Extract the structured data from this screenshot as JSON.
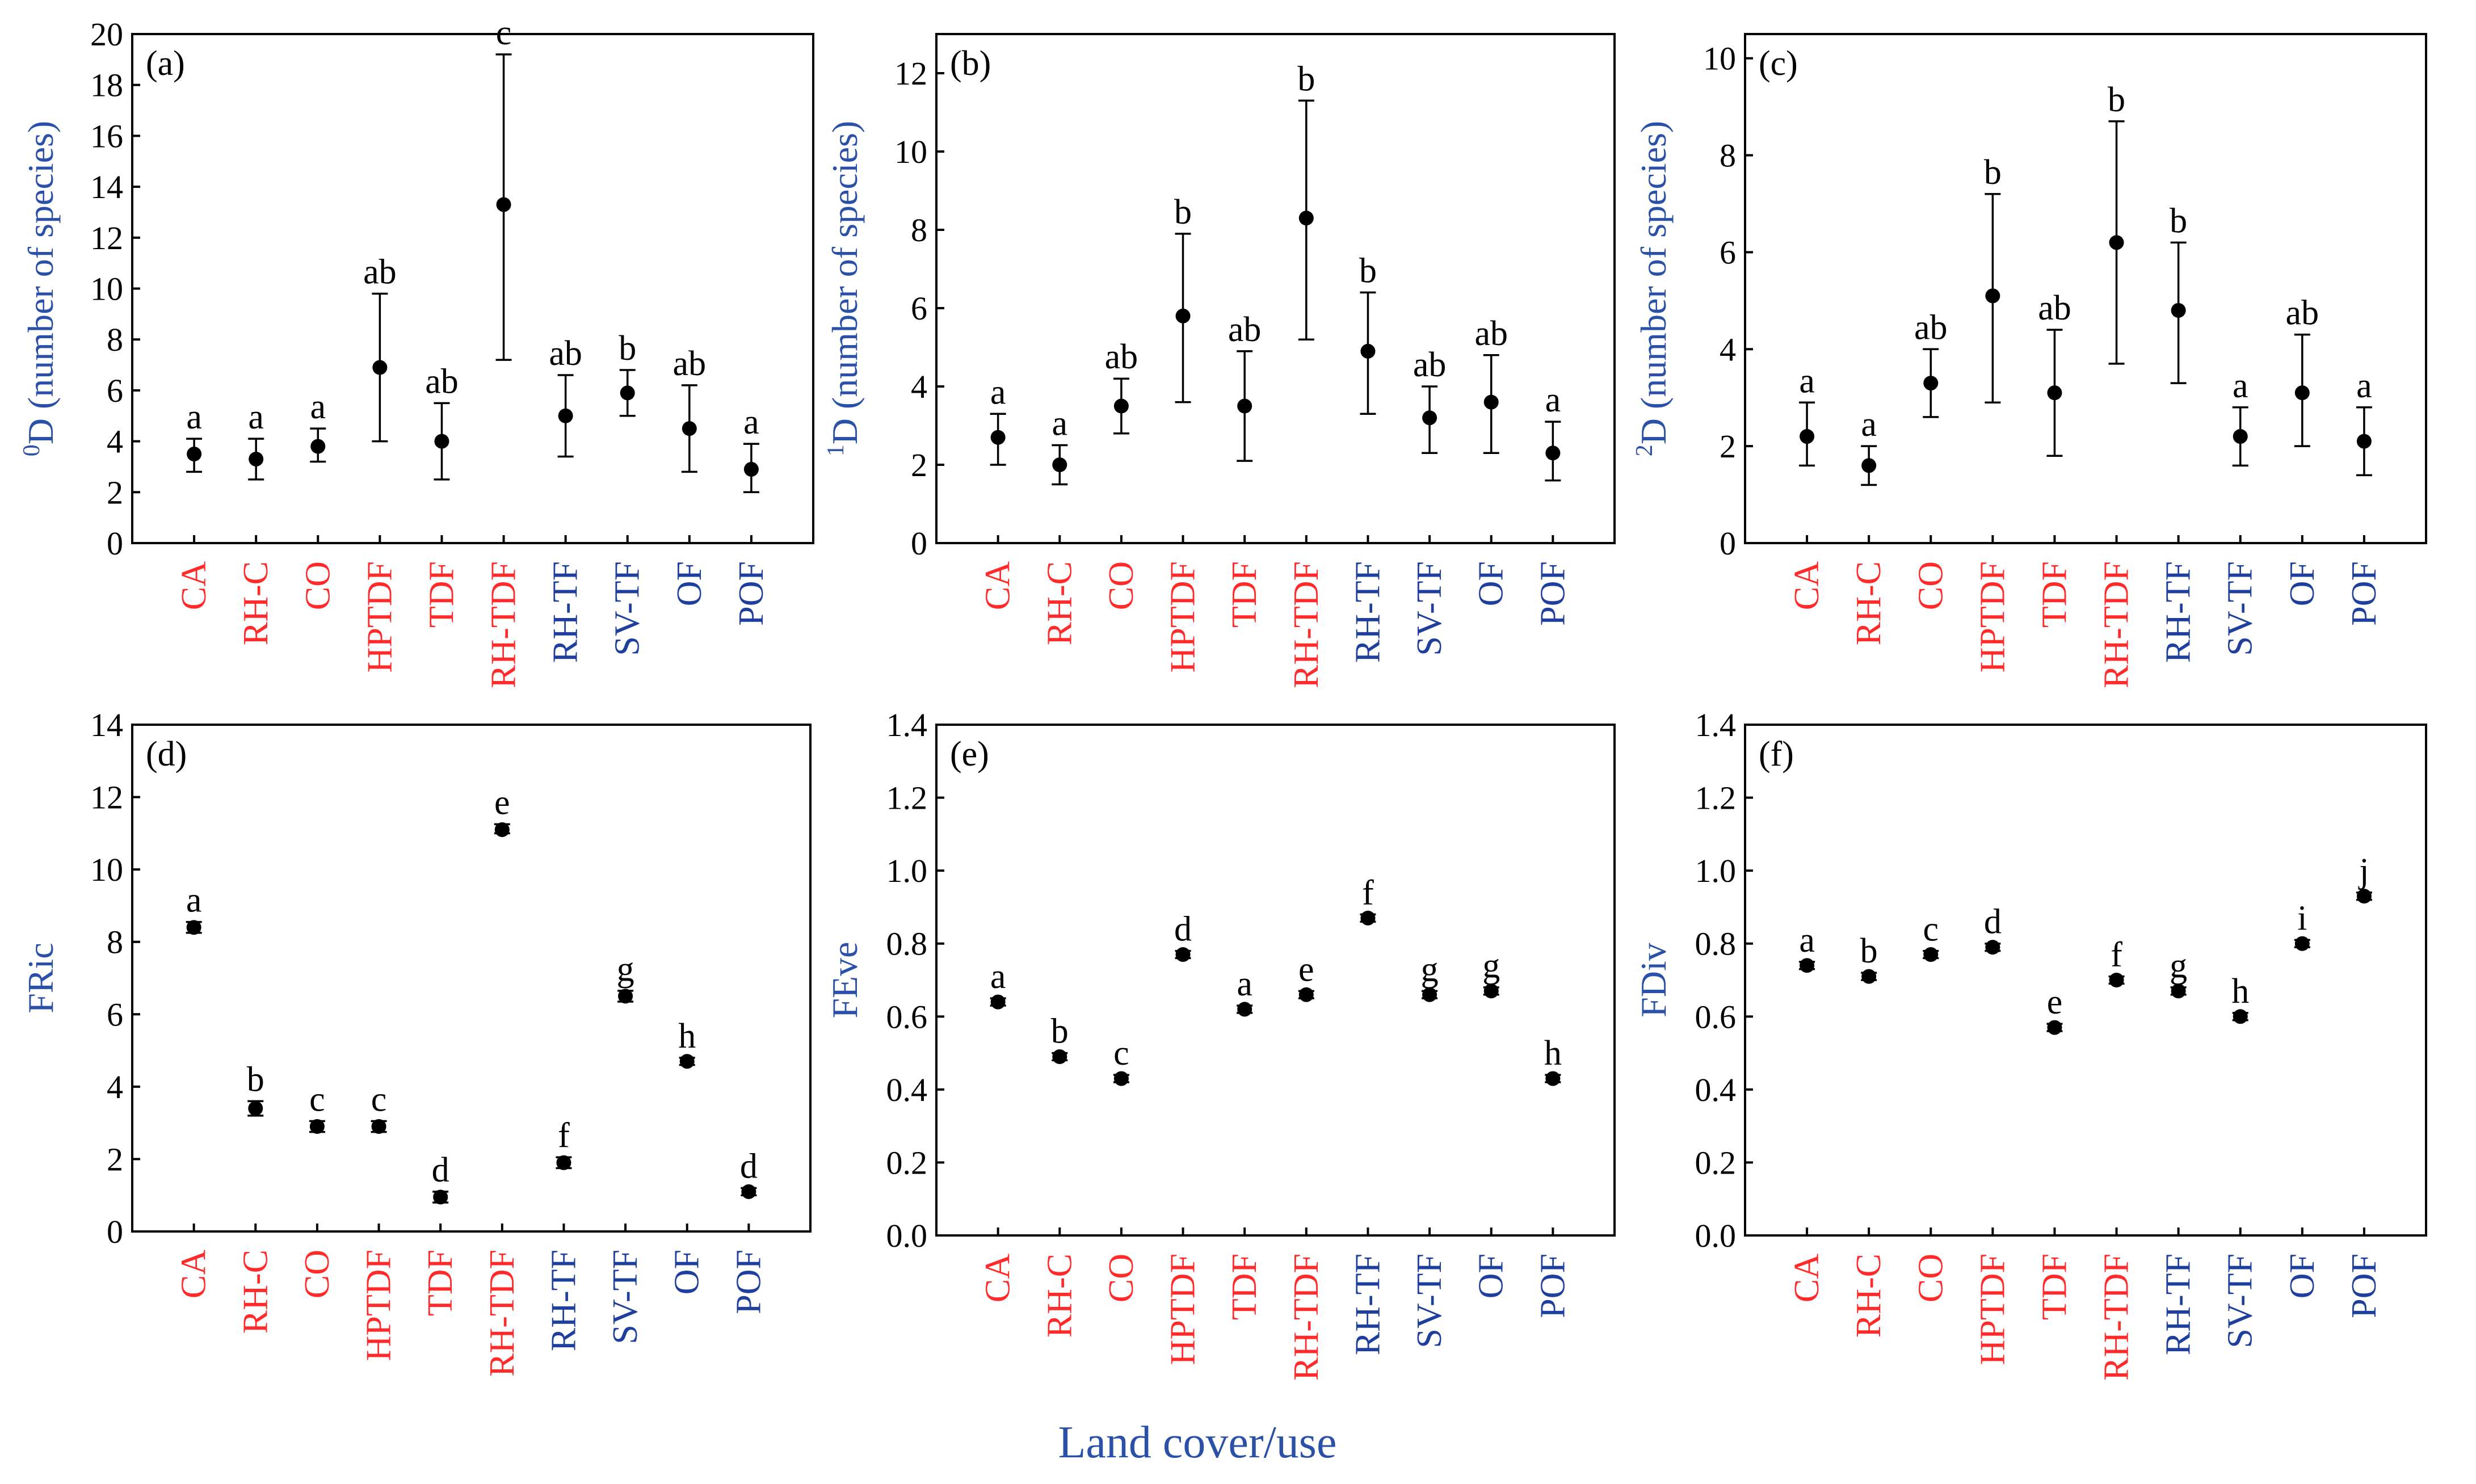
{
  "colors": {
    "original": "#ff2a2a",
    "alternative": "#1f3f9e",
    "axis_title": "#2b50a8"
  },
  "categories": [
    {
      "label": "CA",
      "group": "original"
    },
    {
      "label": "RH-C",
      "group": "original"
    },
    {
      "label": "CO",
      "group": "original"
    },
    {
      "label": "HPTDF",
      "group": "original"
    },
    {
      "label": "TDF",
      "group": "original"
    },
    {
      "label": "RH-TDF",
      "group": "original"
    },
    {
      "label": "RH-TF",
      "group": "alternative"
    },
    {
      "label": "SV-TF",
      "group": "alternative"
    },
    {
      "label": "OF",
      "group": "alternative"
    },
    {
      "label": "POF",
      "group": "alternative"
    }
  ],
  "x_title": "Land cover/use",
  "chart_data": [
    {
      "panel": "(a)",
      "type": "scatter",
      "ylabel_sup": "0",
      "ylabel_main": "D",
      "ylabel_rest": " (number of species)",
      "ylim": [
        0,
        20
      ],
      "yticks": [
        0,
        2,
        4,
        6,
        8,
        10,
        12,
        14,
        16,
        18,
        20
      ],
      "decimals": 0,
      "values": [
        3.5,
        3.3,
        3.8,
        6.9,
        4.0,
        13.3,
        5.0,
        5.9,
        4.5,
        2.9
      ],
      "lower": [
        2.8,
        2.5,
        3.2,
        4.0,
        2.5,
        7.2,
        3.4,
        5.0,
        2.8,
        2.0
      ],
      "upper": [
        4.1,
        4.1,
        4.5,
        9.8,
        5.5,
        19.2,
        6.6,
        6.8,
        6.2,
        3.9
      ],
      "letters": [
        "a",
        "a",
        "a",
        "ab",
        "ab",
        "c",
        "ab",
        "b",
        "ab",
        "a"
      ]
    },
    {
      "panel": "(b)",
      "type": "scatter",
      "ylabel_sup": "1",
      "ylabel_main": "D",
      "ylabel_rest": " (number of species)",
      "ylim": [
        0,
        13
      ],
      "yticks": [
        0,
        2,
        4,
        6,
        8,
        10,
        12
      ],
      "decimals": 0,
      "values": [
        2.7,
        2.0,
        3.5,
        5.8,
        3.5,
        8.3,
        4.9,
        3.2,
        3.6,
        2.3
      ],
      "lower": [
        2.0,
        1.5,
        2.8,
        3.6,
        2.1,
        5.2,
        3.3,
        2.3,
        2.3,
        1.6
      ],
      "upper": [
        3.3,
        2.5,
        4.2,
        7.9,
        4.9,
        11.3,
        6.4,
        4.0,
        4.8,
        3.1
      ],
      "letters": [
        "a",
        "a",
        "ab",
        "b",
        "ab",
        "b",
        "b",
        "ab",
        "ab",
        "a"
      ]
    },
    {
      "panel": "(c)",
      "type": "scatter",
      "ylabel_sup": "2",
      "ylabel_main": "D",
      "ylabel_rest": " (number of species)",
      "ylim": [
        0,
        10.5
      ],
      "yticks": [
        0,
        2,
        4,
        6,
        8,
        10
      ],
      "decimals": 0,
      "values": [
        2.2,
        1.6,
        3.3,
        5.1,
        3.1,
        6.2,
        4.8,
        2.2,
        3.1,
        2.1
      ],
      "lower": [
        1.6,
        1.2,
        2.6,
        2.9,
        1.8,
        3.7,
        3.3,
        1.6,
        2.0,
        1.4
      ],
      "upper": [
        2.9,
        2.0,
        4.0,
        7.2,
        4.4,
        8.7,
        6.2,
        2.8,
        4.3,
        2.8
      ],
      "letters": [
        "a",
        "a",
        "ab",
        "b",
        "ab",
        "b",
        "b",
        "a",
        "ab",
        "a"
      ]
    },
    {
      "panel": "(d)",
      "type": "scatter",
      "ylabel_sup": "",
      "ylabel_main": "FRic",
      "ylabel_rest": "",
      "ylim": [
        0,
        14
      ],
      "yticks": [
        0,
        2,
        4,
        6,
        8,
        10,
        12,
        14
      ],
      "decimals": 0,
      "values": [
        8.4,
        3.4,
        2.9,
        2.9,
        0.95,
        11.1,
        1.9,
        6.5,
        4.7,
        1.1
      ],
      "lower": [
        8.25,
        3.2,
        2.75,
        2.75,
        0.8,
        11.0,
        1.75,
        6.35,
        4.6,
        1.0
      ],
      "upper": [
        8.55,
        3.6,
        3.05,
        3.05,
        1.1,
        11.25,
        2.05,
        6.65,
        4.8,
        1.2
      ],
      "letters": [
        "a",
        "b",
        "c",
        "c",
        "d",
        "e",
        "f",
        "g",
        "h",
        "d"
      ]
    },
    {
      "panel": "(e)",
      "type": "scatter",
      "ylabel_sup": "",
      "ylabel_main": "FEve",
      "ylabel_rest": "",
      "ylim": [
        0,
        1.4
      ],
      "yticks": [
        0,
        0.2,
        0.4,
        0.6,
        0.8,
        1.0,
        1.2,
        1.4
      ],
      "decimals": 1,
      "values": [
        0.64,
        0.49,
        0.43,
        0.77,
        0.62,
        0.66,
        0.87,
        0.66,
        0.67,
        0.43
      ],
      "lower": [
        0.63,
        0.48,
        0.42,
        0.76,
        0.61,
        0.65,
        0.86,
        0.65,
        0.66,
        0.42
      ],
      "upper": [
        0.65,
        0.5,
        0.44,
        0.78,
        0.63,
        0.67,
        0.88,
        0.67,
        0.68,
        0.44
      ],
      "letters": [
        "a",
        "b",
        "c",
        "d",
        "a",
        "e",
        "f",
        "g",
        "g",
        "h"
      ]
    },
    {
      "panel": "(f)",
      "type": "scatter",
      "ylabel_sup": "",
      "ylabel_main": "FDiv",
      "ylabel_rest": "",
      "ylim": [
        0,
        1.4
      ],
      "yticks": [
        0,
        0.2,
        0.4,
        0.6,
        0.8,
        1.0,
        1.2,
        1.4
      ],
      "decimals": 1,
      "values": [
        0.74,
        0.71,
        0.77,
        0.79,
        0.57,
        0.7,
        0.67,
        0.6,
        0.8,
        0.93
      ],
      "lower": [
        0.73,
        0.7,
        0.76,
        0.78,
        0.56,
        0.69,
        0.66,
        0.59,
        0.79,
        0.92
      ],
      "upper": [
        0.75,
        0.72,
        0.78,
        0.8,
        0.58,
        0.71,
        0.68,
        0.61,
        0.81,
        0.94
      ],
      "letters": [
        "a",
        "b",
        "c",
        "d",
        "e",
        "f",
        "g",
        "h",
        "i",
        "j"
      ]
    }
  ]
}
